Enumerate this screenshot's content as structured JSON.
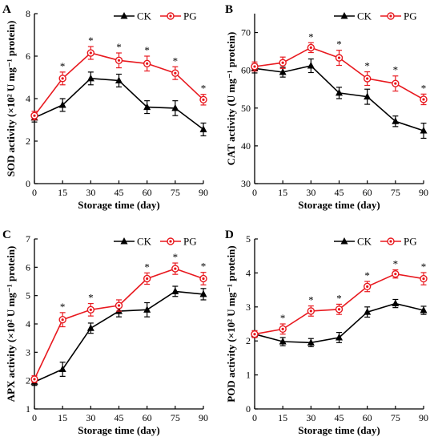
{
  "chart_data": [
    {
      "type": "line",
      "panel": "A",
      "xlabel": "Storage time (day)",
      "ylabel": "SOD activity (×10² U mg⁻¹ protein)",
      "x": [
        0,
        15,
        30,
        45,
        60,
        75,
        90
      ],
      "xlim": [
        0,
        90
      ],
      "ylim": [
        0,
        8
      ],
      "yticks": [
        0,
        2,
        4,
        6,
        8
      ],
      "series": [
        {
          "name": "CK",
          "color": "#000000",
          "marker": "triangle",
          "values": [
            3.1,
            3.7,
            4.95,
            4.85,
            3.6,
            3.55,
            2.55
          ],
          "errors": [
            0.2,
            0.3,
            0.3,
            0.3,
            0.3,
            0.35,
            0.3
          ]
        },
        {
          "name": "PG",
          "color": "#e8191f",
          "marker": "circle",
          "values": [
            3.2,
            4.95,
            6.15,
            5.8,
            5.65,
            5.2,
            3.95
          ],
          "errors": [
            0.2,
            0.3,
            0.3,
            0.35,
            0.35,
            0.3,
            0.25
          ]
        }
      ],
      "significance": [
        false,
        true,
        true,
        true,
        true,
        true,
        true
      ],
      "legend": "top-right",
      "grid": false
    },
    {
      "type": "line",
      "panel": "B",
      "xlabel": "Storage time (day)",
      "ylabel": "CAT activity (U mg⁻¹ protein)",
      "x": [
        0,
        15,
        30,
        45,
        60,
        75,
        90
      ],
      "xlim": [
        0,
        90
      ],
      "ylim": [
        30,
        75
      ],
      "yticks": [
        30,
        40,
        50,
        60,
        70
      ],
      "series": [
        {
          "name": "CK",
          "color": "#000000",
          "marker": "triangle",
          "values": [
            60.5,
            59.5,
            61.2,
            54,
            53,
            46.5,
            44
          ],
          "errors": [
            1.2,
            1.3,
            1.8,
            1.5,
            2,
            1.4,
            2
          ]
        },
        {
          "name": "PG",
          "color": "#e8191f",
          "marker": "circle",
          "values": [
            61,
            62,
            66,
            63.3,
            57.8,
            56.5,
            52.3
          ],
          "errors": [
            1.2,
            1.5,
            1.3,
            2,
            1.8,
            2,
            1.4
          ]
        }
      ],
      "significance": [
        false,
        false,
        true,
        true,
        true,
        true,
        true
      ],
      "legend": "top-right",
      "grid": false
    },
    {
      "type": "line",
      "panel": "C",
      "xlabel": "Storage time (day)",
      "ylabel": "APX activity (×10² U mg⁻¹ protein)",
      "x": [
        0,
        15,
        30,
        45,
        60,
        75,
        90
      ],
      "xlim": [
        0,
        90
      ],
      "ylim": [
        1,
        7
      ],
      "yticks": [
        1,
        2,
        3,
        4,
        5,
        6,
        7
      ],
      "series": [
        {
          "name": "CK",
          "color": "#000000",
          "marker": "triangle",
          "values": [
            1.95,
            2.4,
            3.85,
            4.45,
            4.5,
            5.15,
            5.05
          ],
          "errors": [
            0.12,
            0.25,
            0.18,
            0.2,
            0.25,
            0.18,
            0.2
          ]
        },
        {
          "name": "PG",
          "color": "#e8191f",
          "marker": "circle",
          "values": [
            2.05,
            4.15,
            4.5,
            4.65,
            5.6,
            5.95,
            5.6
          ],
          "errors": [
            0.12,
            0.25,
            0.22,
            0.2,
            0.2,
            0.2,
            0.22
          ]
        }
      ],
      "significance": [
        false,
        true,
        true,
        false,
        true,
        true,
        true
      ],
      "legend": "top-right",
      "grid": false
    },
    {
      "type": "line",
      "panel": "D",
      "xlabel": "Storage time (day)",
      "ylabel": "POD activity (×10² U mg⁻¹ protein)",
      "x": [
        0,
        15,
        30,
        45,
        60,
        75,
        90
      ],
      "xlim": [
        0,
        90
      ],
      "ylim": [
        0,
        5
      ],
      "yticks": [
        0,
        1,
        2,
        3,
        4,
        5
      ],
      "series": [
        {
          "name": "CK",
          "color": "#000000",
          "marker": "triangle",
          "values": [
            2.2,
            1.98,
            1.95,
            2.1,
            2.85,
            3.1,
            2.9
          ],
          "errors": [
            0.1,
            0.12,
            0.12,
            0.15,
            0.15,
            0.12,
            0.12
          ]
        },
        {
          "name": "PG",
          "color": "#e8191f",
          "marker": "circle",
          "values": [
            2.2,
            2.35,
            2.88,
            2.93,
            3.6,
            3.97,
            3.83
          ],
          "errors": [
            0.1,
            0.15,
            0.15,
            0.15,
            0.15,
            0.12,
            0.18
          ]
        }
      ],
      "significance": [
        false,
        true,
        true,
        true,
        true,
        true,
        true
      ],
      "legend": "top-right",
      "grid": false
    }
  ]
}
